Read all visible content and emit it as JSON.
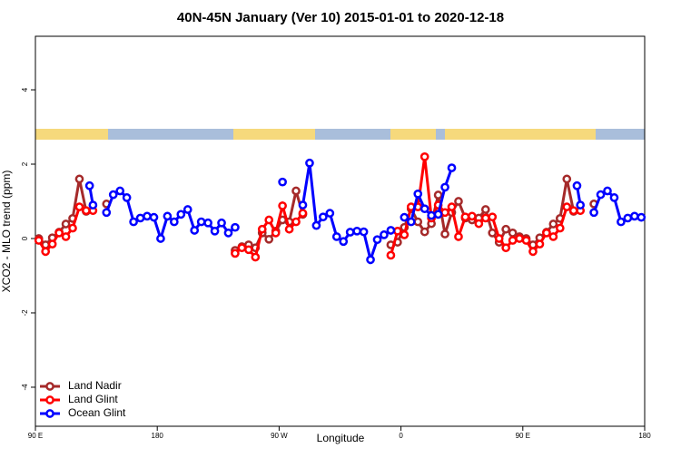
{
  "chart_data": {
    "type": "line",
    "title": "40N-45N January (Ver 10)   2015-01-01 to 2020-12-18",
    "x_label": "Longitude",
    "y_label": "XCO2 - MLO trend (ppm)",
    "xlim": [
      90,
      540
    ],
    "ylim": [
      -5.05,
      5.44
    ],
    "xticks": [
      {
        "value": 90,
        "label": "90 E"
      },
      180,
      {
        "value": 270,
        "label": "90 W"
      },
      {
        "value": 360,
        "label": "0"
      },
      {
        "value": 450,
        "label": "90 E"
      },
      {
        "value": 540,
        "label": "180"
      }
    ],
    "yticks": [
      -4,
      -2,
      0,
      2,
      4
    ],
    "legend": "lower left",
    "series": [
      {
        "name": "Land Nadir",
        "color": "#a52a2a",
        "x": [
          92.5,
          97.5,
          102.5,
          107.5,
          112.5,
          117.5,
          122.5,
          127.5,
          135,
          142.5,
          190,
          237.5,
          242.5,
          247.5,
          252.5,
          257.5,
          262.5,
          267.5,
          272.5,
          277.5,
          282.5,
          287.5,
          320,
          352.5,
          357.5,
          362.5,
          367.5,
          372.5,
          377.5,
          382.5,
          387.5,
          392.5,
          397.5,
          402.5,
          407.5,
          412.5,
          417.5,
          422.5,
          427.5,
          432.5,
          437.5,
          442.5,
          447.5,
          452.5,
          457.5,
          462.5,
          467.5,
          472.5,
          477.5,
          482.5,
          487.5,
          495,
          502.5
        ],
        "values": [
          0,
          -0.17,
          0.02,
          0.17,
          0.39,
          0.54,
          1.6,
          0.73,
          null,
          0.93,
          null,
          -0.32,
          -0.22,
          -0.17,
          -0.25,
          0.15,
          -0.02,
          0.2,
          0.5,
          0.45,
          1.28,
          0.65,
          null,
          -0.17,
          -0.1,
          0.3,
          0.8,
          0.45,
          0.18,
          0.4,
          1.17,
          0.12,
          0.7,
          1.0,
          0.55,
          0.5,
          0.55,
          0.78,
          0.15,
          -0.1,
          0.25,
          0.15,
          0.05,
          0,
          -0.17,
          0.02,
          0.17,
          0.39,
          0.54,
          1.6,
          0.73,
          null,
          0.93
        ]
      },
      {
        "name": "Land Glint",
        "color": "#ff0000",
        "x": [
          92.5,
          97.5,
          102.5,
          107.5,
          112.5,
          117.5,
          122.5,
          127.5,
          132.5,
          190,
          237.5,
          242.5,
          247.5,
          252.5,
          257.5,
          262.5,
          267.5,
          272.5,
          277.5,
          282.5,
          287.5,
          320,
          352.5,
          357.5,
          362.5,
          367.5,
          372.5,
          377.5,
          382.5,
          387.5,
          392.5,
          397.5,
          402.5,
          407.5,
          412.5,
          417.5,
          422.5,
          427.5,
          432.5,
          437.5,
          442.5,
          447.5,
          452.5,
          457.5,
          462.5,
          467.5,
          472.5,
          477.5,
          482.5,
          487.5,
          492.5
        ],
        "values": [
          -0.05,
          -0.35,
          -0.15,
          0.15,
          0.05,
          0.28,
          0.85,
          0.75,
          0.75,
          null,
          -0.4,
          -0.25,
          -0.3,
          -0.5,
          0.25,
          0.5,
          0.15,
          0.88,
          0.25,
          0.45,
          0.68,
          null,
          -0.45,
          0.2,
          0.1,
          0.85,
          0.85,
          2.2,
          0.55,
          0.9,
          0.7,
          0.85,
          0.05,
          0.58,
          0.6,
          0.4,
          0.55,
          0.58,
          0,
          -0.25,
          -0.05,
          0,
          -0.05,
          -0.35,
          -0.15,
          0.15,
          0.05,
          0.28,
          0.85,
          0.75,
          0.75
        ]
      },
      {
        "name": "Ocean Glint",
        "color": "#0000ff",
        "x": [
          130,
          132.5,
          137.5,
          142.5,
          147.5,
          152.5,
          157.5,
          162.5,
          167.5,
          172.5,
          177.5,
          182.5,
          187.5,
          192.5,
          197.5,
          202.5,
          207.5,
          212.5,
          217.5,
          222.5,
          227.5,
          232.5,
          237.5,
          255,
          272.5,
          280,
          287.5,
          292.5,
          297.5,
          302.5,
          307.5,
          312.5,
          317.5,
          322.5,
          327.5,
          332.5,
          337.5,
          342.5,
          347.5,
          352.5,
          357.5,
          362.5,
          367.5,
          372.5,
          377.5,
          382.5,
          387.5,
          392.5,
          397.5,
          445,
          490,
          492.5,
          497.5,
          502.5,
          507.5,
          512.5,
          517.5,
          522.5,
          527.5,
          532.5,
          537.5
        ],
        "values": [
          1.42,
          0.9,
          null,
          0.7,
          1.18,
          1.28,
          1.1,
          0.45,
          0.55,
          0.6,
          0.57,
          0,
          0.6,
          0.45,
          0.65,
          0.78,
          0.22,
          0.45,
          0.42,
          0.2,
          0.42,
          0.15,
          0.3,
          null,
          1.52,
          null,
          0.9,
          2.03,
          0.35,
          0.58,
          0.68,
          0.05,
          -0.08,
          0.17,
          0.2,
          0.18,
          -0.57,
          -0.03,
          0.1,
          0.22,
          null,
          0.57,
          0.45,
          1.2,
          0.8,
          0.62,
          0.65,
          1.38,
          1.9,
          null,
          1.42,
          0.9,
          null,
          0.7,
          1.18,
          1.28,
          1.1,
          0.45,
          0.55,
          0.6,
          0.57
        ]
      }
    ]
  }
}
